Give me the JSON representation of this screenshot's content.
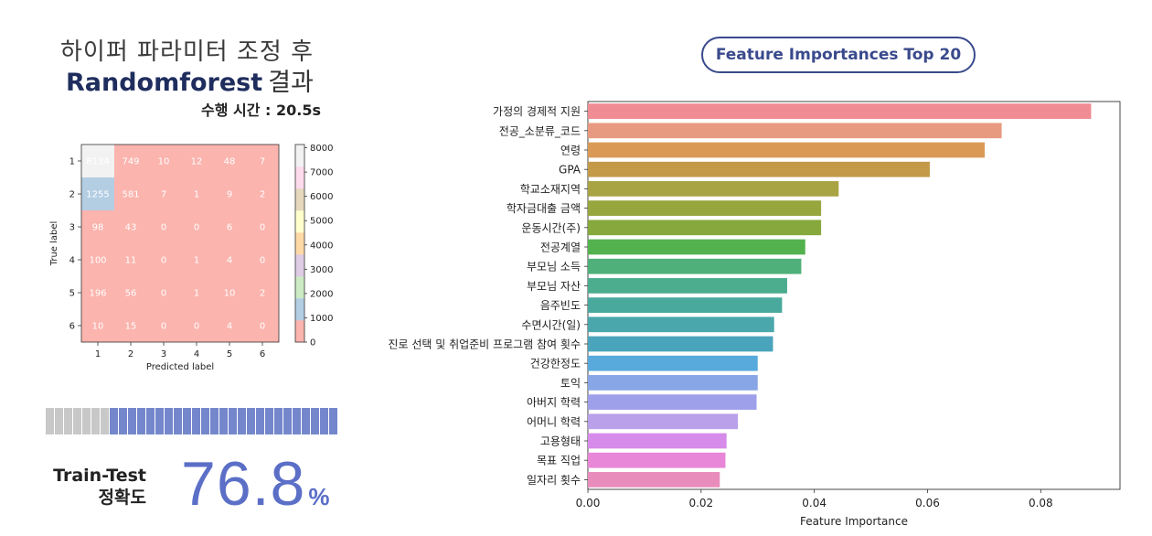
{
  "header": {
    "title_line1": "하이퍼 파라미터 조정 후",
    "title_model": "Randomforest",
    "title_suffix": "결과",
    "elapsed": "수행 시간 : 20.5s"
  },
  "feature_title": "Feature Importances Top 20",
  "accuracy": {
    "label_line1": "Train-Test",
    "label_line2": "정확도",
    "value": "76.8",
    "unit": "%",
    "progress_fraction": 0.768
  },
  "chart_data": [
    {
      "type": "heatmap",
      "title": "",
      "xlabel": "Predicted label",
      "ylabel": "True label",
      "x_categories": [
        "1",
        "2",
        "3",
        "4",
        "5",
        "6"
      ],
      "y_categories": [
        "1",
        "2",
        "3",
        "4",
        "5",
        "6"
      ],
      "values": [
        [
          8134,
          749,
          10,
          12,
          48,
          7
        ],
        [
          1255,
          581,
          7,
          1,
          9,
          2
        ],
        [
          98,
          43,
          0,
          0,
          6,
          0
        ],
        [
          100,
          11,
          0,
          1,
          4,
          0
        ],
        [
          196,
          56,
          0,
          1,
          10,
          2
        ],
        [
          10,
          15,
          0,
          0,
          4,
          0
        ]
      ],
      "colorbar_ticks": [
        0,
        1000,
        2000,
        3000,
        4000,
        5000,
        6000,
        7000,
        8000
      ],
      "colorbar_range": [
        0,
        8134
      ],
      "colormap": [
        "#fbb4ae",
        "#b3cde3",
        "#ccebc5",
        "#decbe4",
        "#fed9a6",
        "#ffffcc",
        "#e5d8bd",
        "#fddaec",
        "#f2f2f2"
      ]
    },
    {
      "type": "bar",
      "orientation": "horizontal",
      "title": "",
      "xlabel": "Feature Importance",
      "ylabel": "",
      "xlim": [
        0,
        0.094
      ],
      "xticks": [
        "0.00",
        "0.02",
        "0.04",
        "0.06",
        "0.08"
      ],
      "categories": [
        "가정의 경제적 지원",
        "전공_소분류_코드",
        "연령",
        "GPA",
        "학교소재지역",
        "학자금대출 금액",
        "운동시간(주)",
        "전공계열",
        "부모님 소득",
        "부모님 자산",
        "음주빈도",
        "수면시간(일)",
        "진로 선택 및 취업준비 프로그램 참여 횟수",
        "건강한정도",
        "토익",
        "아버지 학력",
        "어머니 학력",
        "고용형태",
        "목표 직업",
        "일자리 횟수"
      ],
      "values": [
        0.0889,
        0.0731,
        0.0701,
        0.0604,
        0.0443,
        0.0412,
        0.0412,
        0.0384,
        0.0377,
        0.0352,
        0.0343,
        0.0329,
        0.0327,
        0.03,
        0.03,
        0.0298,
        0.0265,
        0.0245,
        0.0243,
        0.0233
      ],
      "colors": [
        "#f08c93",
        "#e89a80",
        "#da9a56",
        "#c49a48",
        "#a8a444",
        "#98a63e",
        "#86a83c",
        "#54b24e",
        "#4fb07a",
        "#4bac8e",
        "#49a99c",
        "#4aa7ab",
        "#4aa5bc",
        "#58aadc",
        "#88a6e6",
        "#9fa0ea",
        "#baa0ea",
        "#d68aea",
        "#e886d8",
        "#e88cbc"
      ]
    }
  ]
}
